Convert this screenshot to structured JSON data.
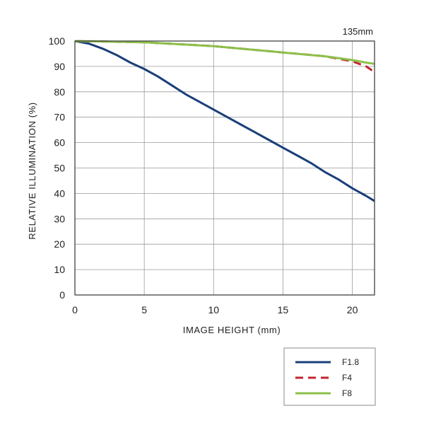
{
  "chart_data": {
    "type": "line",
    "corner_label": "135mm",
    "xlabel": "IMAGE HEIGHT (mm)",
    "ylabel": "RELATIVE ILLUMINATION (%)",
    "xlim": [
      0,
      21.6
    ],
    "ylim": [
      0,
      100
    ],
    "xticks": [
      0,
      5,
      10,
      15,
      20
    ],
    "yticks": [
      0,
      10,
      20,
      30,
      40,
      50,
      60,
      70,
      80,
      90,
      100
    ],
    "grid": true,
    "legend_position": "bottom-right",
    "series": [
      {
        "name": "F1.8",
        "color": "#1b3f7a",
        "dash": "solid",
        "points": [
          [
            0,
            100
          ],
          [
            1,
            99
          ],
          [
            2,
            97
          ],
          [
            3,
            94.5
          ],
          [
            4,
            91.5
          ],
          [
            5,
            89
          ],
          [
            6,
            86
          ],
          [
            7,
            82.5
          ],
          [
            8,
            79
          ],
          [
            9,
            76
          ],
          [
            10,
            73
          ],
          [
            11,
            70
          ],
          [
            12,
            67
          ],
          [
            13,
            64
          ],
          [
            14,
            61
          ],
          [
            15,
            58
          ],
          [
            16,
            55
          ],
          [
            17,
            52
          ],
          [
            18,
            48.5
          ],
          [
            19,
            45.5
          ],
          [
            20,
            42
          ],
          [
            21,
            39
          ],
          [
            21.6,
            37
          ]
        ]
      },
      {
        "name": "F4",
        "color": "#c0262d",
        "dash": "dashed",
        "points": [
          [
            0,
            100
          ],
          [
            5,
            99.5
          ],
          [
            10,
            98
          ],
          [
            15,
            95.5
          ],
          [
            18,
            94
          ],
          [
            20,
            92
          ],
          [
            21,
            90
          ],
          [
            21.4,
            88.5
          ],
          [
            21.6,
            88
          ]
        ]
      },
      {
        "name": "F8",
        "color": "#8cc04a",
        "dash": "solid",
        "points": [
          [
            0,
            100
          ],
          [
            5,
            99.5
          ],
          [
            10,
            98
          ],
          [
            15,
            95.5
          ],
          [
            18,
            94
          ],
          [
            20,
            92.5
          ],
          [
            21,
            91.5
          ],
          [
            21.6,
            91
          ]
        ]
      }
    ]
  }
}
